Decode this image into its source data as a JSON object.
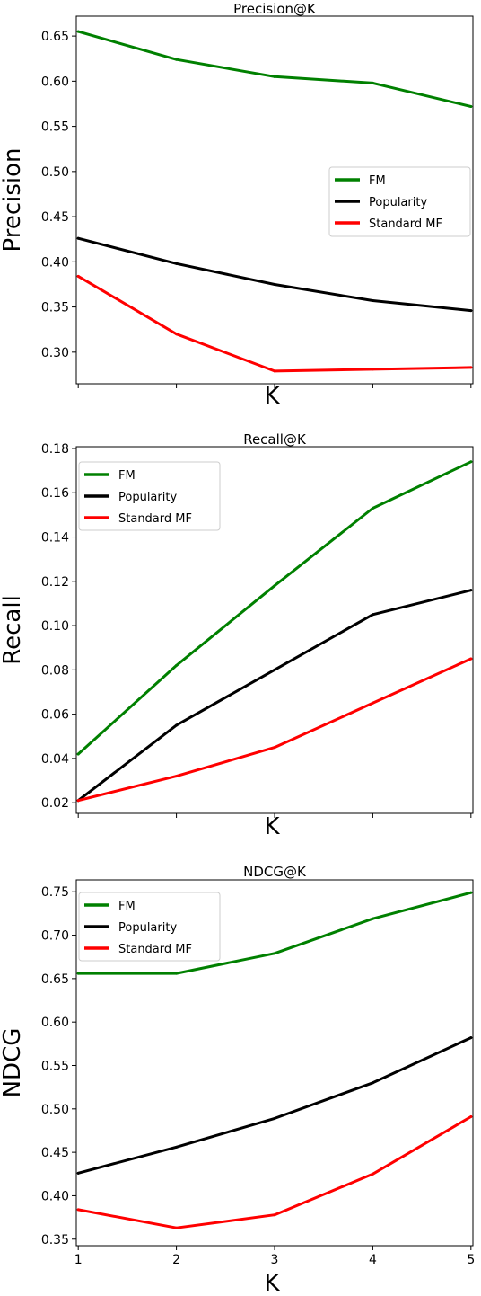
{
  "chart_data": [
    {
      "type": "line",
      "title": "Precision@K",
      "xlabel": "K",
      "ylabel": "Precision",
      "x": [
        1,
        2,
        3,
        4,
        5
      ],
      "xlim": [
        0.98,
        5.02
      ],
      "ylim": [
        0.265,
        0.672
      ],
      "yticks": [
        "0.30",
        "0.35",
        "0.40",
        "0.45",
        "0.50",
        "0.55",
        "0.60",
        "0.65"
      ],
      "xticks": [],
      "legend_position": "center-right",
      "series": [
        {
          "name": "FM",
          "color": "#008000",
          "values": [
            0.655,
            0.624,
            0.605,
            0.598,
            0.572
          ]
        },
        {
          "name": "Popularity",
          "color": "#000000",
          "values": [
            0.426,
            0.398,
            0.375,
            0.357,
            0.346
          ]
        },
        {
          "name": "Standard MF",
          "color": "#ff0000",
          "values": [
            0.384,
            0.32,
            0.279,
            0.281,
            0.283
          ]
        }
      ]
    },
    {
      "type": "line",
      "title": "Recall@K",
      "xlabel": "K",
      "ylabel": "Recall",
      "x": [
        1,
        2,
        3,
        4,
        5
      ],
      "xlim": [
        0.98,
        5.02
      ],
      "ylim": [
        0.0152,
        0.1808
      ],
      "yticks": [
        "0.02",
        "0.04",
        "0.06",
        "0.08",
        "0.10",
        "0.12",
        "0.14",
        "0.16",
        "0.18"
      ],
      "xticks": [],
      "legend_position": "upper-left",
      "series": [
        {
          "name": "FM",
          "color": "#008000",
          "values": [
            0.042,
            0.082,
            0.118,
            0.153,
            0.174
          ]
        },
        {
          "name": "Popularity",
          "color": "#000000",
          "values": [
            0.021,
            0.055,
            0.08,
            0.105,
            0.116
          ]
        },
        {
          "name": "Standard MF",
          "color": "#ff0000",
          "values": [
            0.021,
            0.032,
            0.045,
            0.065,
            0.085
          ]
        }
      ]
    },
    {
      "type": "line",
      "title": "NDCG@K",
      "xlabel": "K",
      "ylabel": "NDCG",
      "x": [
        1,
        2,
        3,
        4,
        5
      ],
      "xlim": [
        0.98,
        5.02
      ],
      "ylim": [
        0.3425,
        0.7637
      ],
      "yticks": [
        "0.35",
        "0.40",
        "0.45",
        "0.50",
        "0.55",
        "0.60",
        "0.65",
        "0.70",
        "0.75"
      ],
      "xticks": [
        "1",
        "2",
        "3",
        "4",
        "5"
      ],
      "legend_position": "upper-left",
      "series": [
        {
          "name": "FM",
          "color": "#008000",
          "values": [
            0.656,
            0.656,
            0.679,
            0.719,
            0.749
          ]
        },
        {
          "name": "Popularity",
          "color": "#000000",
          "values": [
            0.426,
            0.456,
            0.489,
            0.53,
            0.582
          ]
        },
        {
          "name": "Standard MF",
          "color": "#ff0000",
          "values": [
            0.384,
            0.363,
            0.378,
            0.425,
            0.491
          ]
        }
      ]
    }
  ]
}
